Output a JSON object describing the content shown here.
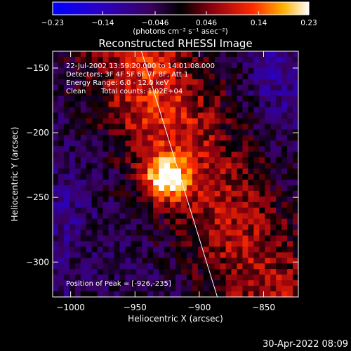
{
  "chart_data": {
    "type": "heatmap",
    "title": "Reconstructed RHESSI Image",
    "xlabel": "Heliocentric X (arcsec)",
    "ylabel": "Heliocentric Y (arcsec)",
    "xlim": [
      -1014,
      -823
    ],
    "ylim": [
      -327,
      -137
    ],
    "x_ticks": [
      -1000,
      -950,
      -900,
      -850
    ],
    "x_tick_labels": [
      "−1000",
      "−950",
      "−900",
      "−850"
    ],
    "y_ticks": [
      -150,
      -200,
      -250,
      -300
    ],
    "y_tick_labels": [
      "−150",
      "−200",
      "−250",
      "−300"
    ],
    "colorbar": {
      "range": [
        -0.23,
        0.23
      ],
      "ticks": [
        -0.23,
        -0.14,
        -0.046,
        0.046,
        0.14,
        0.23
      ],
      "tick_labels": [
        "−0.23",
        "−0.14",
        "−0.046",
        "0.046",
        "0.14",
        "0.23"
      ],
      "units_label": "(photons cm⁻² s⁻¹ asec⁻²)"
    },
    "peak": {
      "x": -926,
      "y": -235
    },
    "annotations": {
      "date": "22-Jul-2002 13:59:20.000 to 14:01:08.000",
      "detectors": "Detectors: 3F 4F 5F 6F 7F 8F, Att 1",
      "energy": "Energy Range: 6.0 - 12.0 keV",
      "clean": "Clean",
      "total_counts": "Total counts: 1.02E+04",
      "peak_position": "Position of Peak = [-926,-235]"
    },
    "limb_line": {
      "x": [
        -945,
        -886
      ],
      "y": [
        -137,
        -327
      ]
    },
    "grid": false
  },
  "footer_timestamp": "30-Apr-2022 08:09",
  "colors": {
    "background": "#000000",
    "text": "#ffffff",
    "low": "#0000ff",
    "mid": "#000000",
    "high": "#ffffff"
  }
}
